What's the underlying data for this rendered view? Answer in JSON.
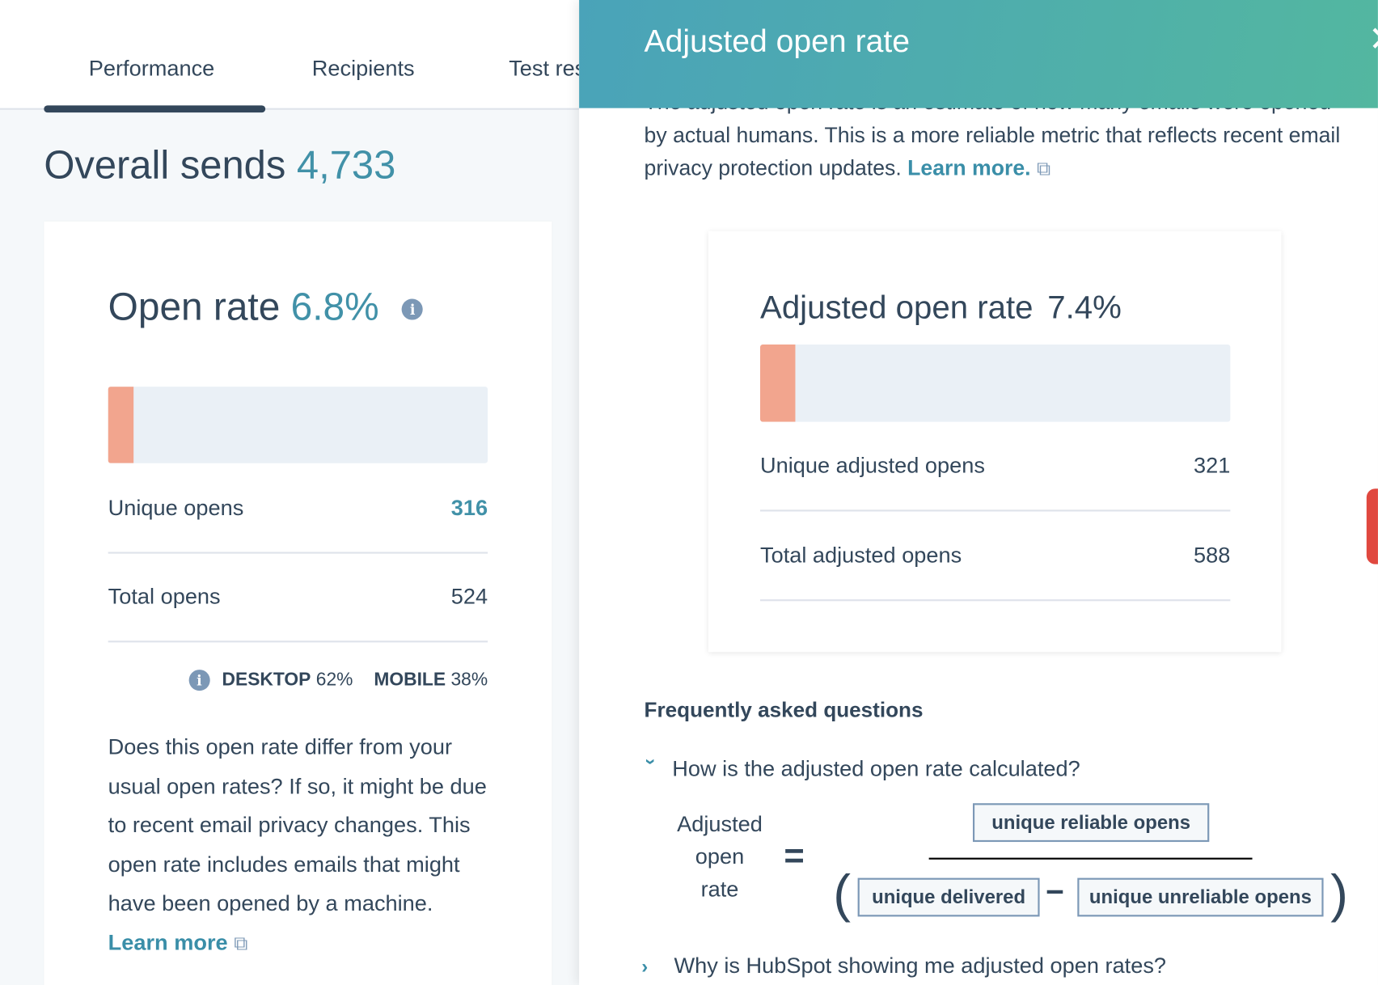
{
  "tabs": [
    {
      "label": "Performance",
      "active": true
    },
    {
      "label": "Recipients",
      "active": false
    },
    {
      "label": "Test results",
      "active": false
    }
  ],
  "overall_sends": {
    "label": "Overall sends",
    "value": "4,733"
  },
  "open_rate_card": {
    "title": "Open rate",
    "value": "6.8%",
    "bar_percent": 6.8,
    "rows": [
      {
        "label": "Unique opens",
        "value": "316"
      },
      {
        "label": "Total opens",
        "value": "524"
      }
    ],
    "device": {
      "desktop_label": "DESKTOP",
      "desktop_value": "62%",
      "mobile_label": "MOBILE",
      "mobile_value": "38%"
    },
    "note": "Does this open rate differ from your usual open rates? If so, it might be due to recent email privacy changes. This open rate includes emails that might have been opened by a machine.",
    "learn_more": "Learn more"
  },
  "panel": {
    "title": "Adjusted open rate",
    "intro": "The adjusted open rate is an estimate of how many emails were opened by actual humans. This is a more reliable metric that reflects recent email privacy protection updates.",
    "learn_more": "Learn more.",
    "card": {
      "title": "Adjusted open rate",
      "value": "7.4%",
      "bar_percent": 7.4,
      "rows": [
        {
          "label": "Unique adjusted opens",
          "value": "321"
        },
        {
          "label": "Total adjusted opens",
          "value": "588"
        }
      ]
    },
    "faq": {
      "heading": "Frequently asked questions",
      "questions": [
        {
          "label": "How is the adjusted open rate calculated?",
          "expanded": true
        },
        {
          "label": "Why is HubSpot showing me adjusted open rates?",
          "expanded": false
        }
      ],
      "formula": {
        "lhs_1": "Adjusted",
        "lhs_2": "open",
        "lhs_3": "rate",
        "equals": "=",
        "numerator": "unique reliable opens",
        "denominator_a": "unique delivered",
        "minus": "−",
        "denominator_b": "unique unreliable opens"
      }
    }
  },
  "colors": {
    "accent": "#4191a8",
    "bar_fill": "#f2a58e",
    "header_start": "#4aa3b9",
    "header_end": "#53b7a0"
  }
}
